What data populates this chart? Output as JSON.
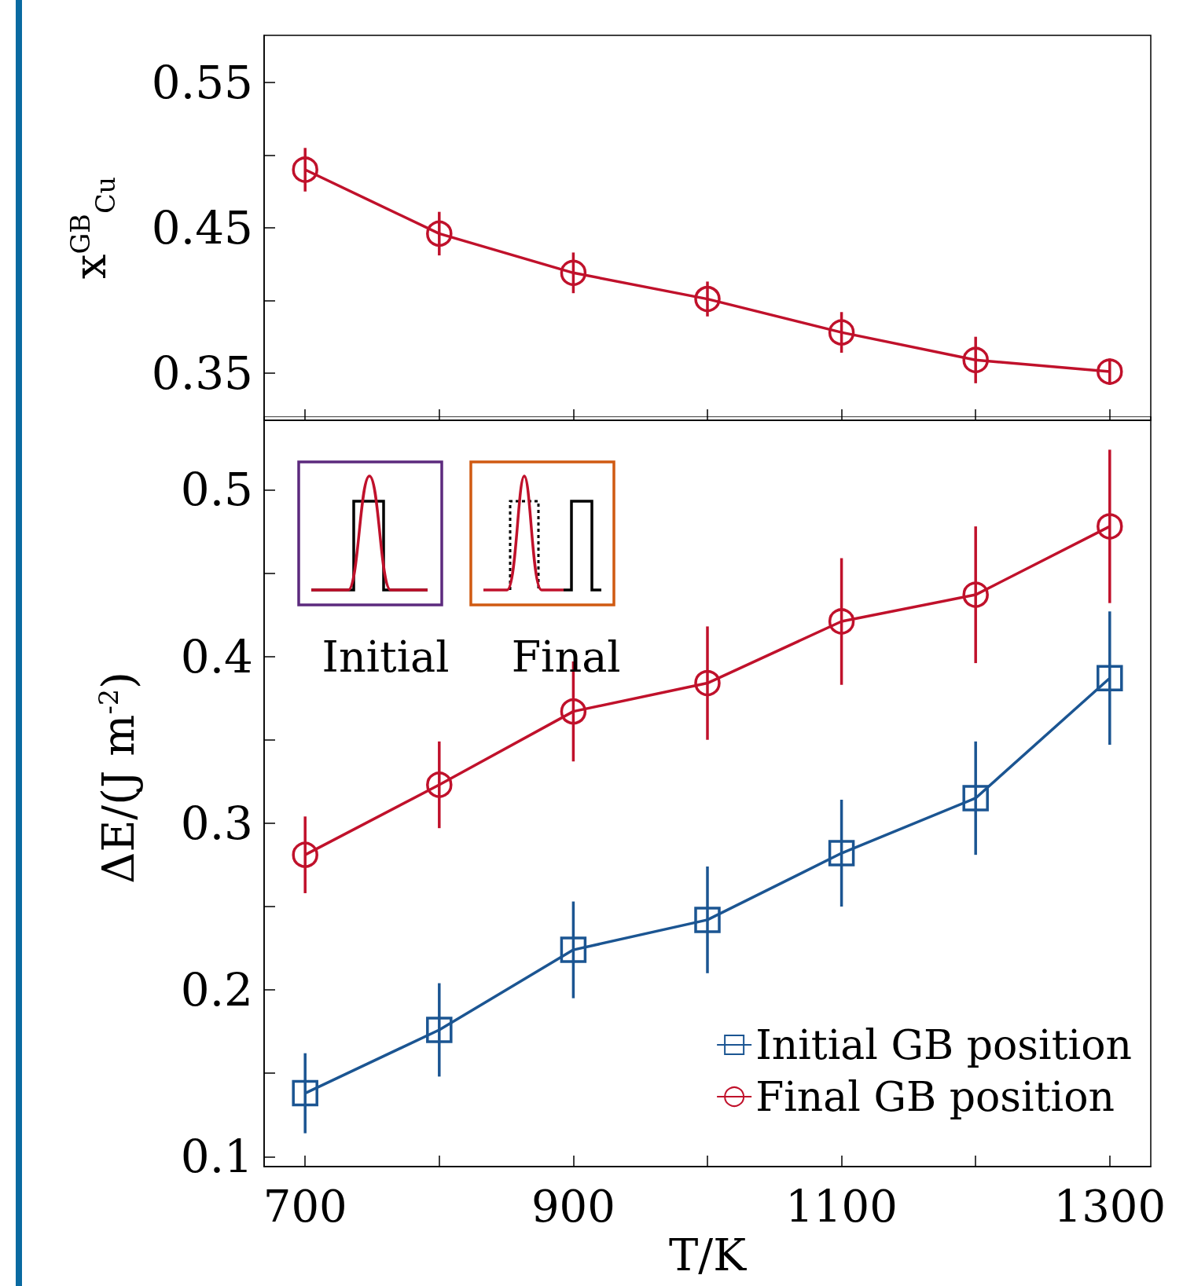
{
  "chart_data": [
    {
      "type": "line",
      "ylabel": "x$^{GB}$$_{Cu}$",
      "xlim": [
        669.4,
        1330.6
      ],
      "xticks": [
        700,
        {
          "value": 800,
          "label": null
        },
        900,
        {
          "value": 1000,
          "label": null
        },
        1100,
        {
          "value": 1200,
          "label": null
        },
        1300
      ],
      "ylim": [
        0.3175,
        0.5825
      ],
      "yticks": [
        0.35,
        {
          "value": 0.4,
          "label": null
        },
        0.45,
        {
          "value": 0.5,
          "label": null
        },
        0.55
      ],
      "tick_labels": "y",
      "grid": false,
      "legend": false,
      "x": [
        700,
        800,
        900,
        1000,
        1100,
        1200,
        1300
      ],
      "series": [
        {
          "color": "#c0112b",
          "marker": "circle",
          "values": [
            0.49,
            0.446,
            0.419,
            0.401,
            0.378,
            0.359,
            0.351
          ],
          "errors": [
            0.015,
            0.015,
            0.014,
            0.012,
            0.014,
            0.016,
            0.009
          ]
        }
      ]
    },
    {
      "type": "line",
      "xlabel": "T/K",
      "ylabel": "ΔE/(J m$^{-2}$)",
      "xlim": [
        669.4,
        1330.6
      ],
      "xticks": [
        700,
        {
          "value": 800,
          "label": null
        },
        900,
        {
          "value": 1000,
          "label": null
        },
        1100,
        {
          "value": 1200,
          "label": null
        },
        1300
      ],
      "ylim": [
        0.094,
        0.544
      ],
      "yticks": [
        0.1,
        {
          "value": 0.15,
          "label": null
        },
        0.2,
        {
          "value": 0.25,
          "label": null
        },
        0.3,
        {
          "value": 0.35,
          "label": null
        },
        0.4,
        {
          "value": 0.45,
          "label": null
        },
        0.5
      ],
      "grid": false,
      "legend": "bottom right",
      "annotations": [
        "Initial",
        "Final"
      ],
      "x": [
        700,
        800,
        900,
        1000,
        1100,
        1200,
        1300
      ],
      "series": [
        {
          "name": "Initial GB position",
          "color": "#1b5592",
          "marker": "square",
          "values": [
            0.138,
            0.176,
            0.224,
            0.242,
            0.282,
            0.315,
            0.387
          ],
          "errors": [
            0.024,
            0.028,
            0.029,
            0.032,
            0.032,
            0.034,
            0.04
          ]
        },
        {
          "name": "Final GB position",
          "color": "#c0112b",
          "marker": "circle",
          "values": [
            0.281,
            0.323,
            0.367,
            0.384,
            0.421,
            0.437,
            0.478
          ],
          "errors": [
            0.023,
            0.026,
            0.03,
            0.034,
            0.038,
            0.041,
            0.046
          ]
        }
      ]
    }
  ]
}
